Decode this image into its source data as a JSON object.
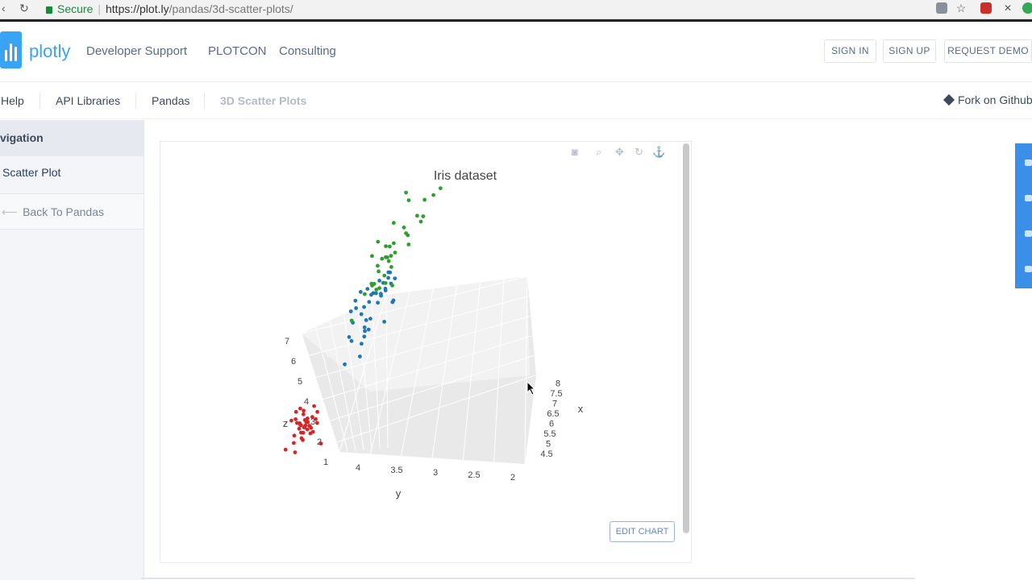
{
  "browser": {
    "secure_label": "Secure",
    "url_host": "https://plot.ly",
    "url_path": "/pandas/3d-scatter-plots/"
  },
  "header": {
    "logo_text": "plotly",
    "nav": [
      "Developer Support",
      "PLOTCON",
      "Consulting"
    ],
    "sign_in": "SIGN IN",
    "sign_up": "SIGN UP",
    "request_demo": "REQUEST DEMO"
  },
  "breadcrumb": {
    "items": [
      "Help",
      "API Libraries",
      "Pandas"
    ],
    "current": "3D Scatter Plots",
    "fork": "Fork on Github"
  },
  "sidebar": {
    "heading": "vigation",
    "item": "Scatter Plot",
    "back": "Back To Pandas"
  },
  "chart": {
    "edit_button": "EDIT CHART"
  },
  "chart_data": {
    "type": "scatter",
    "title": "Iris dataset",
    "xlabel": "x",
    "ylabel": "y",
    "zlabel": "z",
    "x_ticks": [
      "4.5",
      "5",
      "5.5",
      "6",
      "6.5",
      "7",
      "7.5",
      "8"
    ],
    "y_ticks": [
      "4",
      "3.5",
      "3",
      "2.5",
      "2"
    ],
    "z_ticks": [
      "1",
      "2",
      "3",
      "4",
      "5",
      "6",
      "7"
    ],
    "grid": true,
    "series": [
      {
        "color": "#d62728",
        "points": [
          [
            5.1,
            3.5,
            1.4
          ],
          [
            4.9,
            3.0,
            1.4
          ],
          [
            4.7,
            3.2,
            1.3
          ],
          [
            4.6,
            3.1,
            1.5
          ],
          [
            5.0,
            3.6,
            1.4
          ],
          [
            5.4,
            3.9,
            1.7
          ],
          [
            4.6,
            3.4,
            1.4
          ],
          [
            5.0,
            3.4,
            1.5
          ],
          [
            4.4,
            2.9,
            1.4
          ],
          [
            4.9,
            3.1,
            1.5
          ],
          [
            5.4,
            3.7,
            1.5
          ],
          [
            4.8,
            3.4,
            1.6
          ],
          [
            4.8,
            3.0,
            1.4
          ],
          [
            4.3,
            3.0,
            1.1
          ],
          [
            5.8,
            4.0,
            1.2
          ],
          [
            5.7,
            4.4,
            1.5
          ],
          [
            5.4,
            3.9,
            1.3
          ],
          [
            5.1,
            3.5,
            1.4
          ],
          [
            5.7,
            3.8,
            1.7
          ],
          [
            5.1,
            3.8,
            1.5
          ],
          [
            5.4,
            3.4,
            1.7
          ],
          [
            5.1,
            3.7,
            1.5
          ],
          [
            4.6,
            3.6,
            1.0
          ],
          [
            5.1,
            3.3,
            1.7
          ],
          [
            4.8,
            3.4,
            1.9
          ],
          [
            5.0,
            3.0,
            1.6
          ],
          [
            5.0,
            3.4,
            1.6
          ],
          [
            5.2,
            3.5,
            1.5
          ],
          [
            5.2,
            3.4,
            1.4
          ],
          [
            4.7,
            3.2,
            1.6
          ],
          [
            4.8,
            3.1,
            1.6
          ],
          [
            5.4,
            3.4,
            1.5
          ],
          [
            5.2,
            4.1,
            1.5
          ],
          [
            5.5,
            4.2,
            1.4
          ],
          [
            4.5,
            2.3,
            1.3
          ],
          [
            5.0,
            3.5,
            1.3
          ],
          [
            4.4,
            3.2,
            1.3
          ],
          [
            5.1,
            3.8,
            1.9
          ],
          [
            5.3,
            3.7,
            1.5
          ],
          [
            5.0,
            3.3,
            1.4
          ]
        ]
      },
      {
        "color": "#1f77b4",
        "points": [
          [
            7.0,
            3.2,
            4.7
          ],
          [
            6.4,
            3.2,
            4.5
          ],
          [
            6.9,
            3.1,
            4.9
          ],
          [
            5.5,
            2.3,
            4.0
          ],
          [
            6.5,
            2.8,
            4.6
          ],
          [
            5.7,
            2.8,
            4.5
          ],
          [
            6.3,
            3.3,
            4.7
          ],
          [
            4.9,
            2.4,
            3.3
          ],
          [
            6.6,
            2.9,
            4.6
          ],
          [
            5.2,
            2.7,
            3.9
          ],
          [
            5.0,
            2.0,
            3.5
          ],
          [
            5.9,
            3.0,
            4.2
          ],
          [
            6.0,
            2.2,
            4.0
          ],
          [
            6.1,
            2.9,
            4.7
          ],
          [
            5.6,
            2.9,
            3.6
          ],
          [
            6.7,
            3.1,
            4.4
          ],
          [
            5.6,
            3.0,
            4.5
          ],
          [
            5.8,
            2.7,
            4.1
          ],
          [
            6.2,
            2.2,
            4.5
          ],
          [
            5.6,
            2.5,
            3.9
          ],
          [
            5.9,
            3.2,
            4.8
          ],
          [
            6.1,
            2.8,
            4.0
          ],
          [
            6.3,
            2.5,
            4.9
          ],
          [
            6.1,
            2.8,
            4.7
          ],
          [
            6.4,
            2.9,
            4.3
          ],
          [
            6.6,
            3.0,
            4.4
          ],
          [
            6.8,
            2.8,
            4.8
          ],
          [
            6.7,
            3.0,
            5.0
          ],
          [
            6.0,
            2.9,
            4.5
          ],
          [
            5.7,
            2.6,
            3.5
          ],
          [
            5.5,
            2.4,
            3.8
          ],
          [
            5.8,
            2.7,
            3.9
          ],
          [
            6.0,
            2.7,
            5.1
          ],
          [
            5.4,
            3.0,
            4.5
          ],
          [
            6.0,
            3.4,
            4.5
          ],
          [
            6.7,
            3.1,
            4.7
          ],
          [
            6.3,
            2.3,
            4.4
          ],
          [
            5.6,
            3.0,
            4.1
          ]
        ]
      },
      {
        "color": "#2ca02c",
        "points": [
          [
            6.3,
            3.3,
            6.0
          ],
          [
            5.8,
            2.7,
            5.1
          ],
          [
            7.1,
            3.0,
            5.9
          ],
          [
            6.3,
            2.9,
            5.6
          ],
          [
            6.5,
            3.0,
            5.8
          ],
          [
            7.6,
            3.0,
            6.6
          ],
          [
            4.9,
            2.5,
            4.5
          ],
          [
            7.3,
            2.9,
            6.3
          ],
          [
            6.7,
            2.5,
            5.8
          ],
          [
            7.2,
            3.6,
            6.1
          ],
          [
            6.5,
            3.2,
            5.1
          ],
          [
            6.4,
            2.7,
            5.3
          ],
          [
            6.8,
            3.0,
            5.5
          ],
          [
            5.7,
            2.5,
            5.0
          ],
          [
            5.8,
            2.8,
            5.1
          ],
          [
            6.4,
            3.2,
            5.3
          ],
          [
            6.5,
            3.0,
            5.5
          ],
          [
            7.7,
            3.8,
            6.7
          ],
          [
            7.7,
            2.6,
            6.9
          ],
          [
            6.0,
            2.2,
            5.0
          ],
          [
            6.9,
            3.2,
            5.7
          ],
          [
            5.6,
            2.8,
            4.9
          ],
          [
            7.7,
            2.8,
            6.7
          ],
          [
            6.3,
            2.7,
            4.9
          ],
          [
            6.7,
            3.3,
            5.7
          ],
          [
            7.2,
            3.2,
            6.0
          ],
          [
            6.2,
            2.8,
            4.8
          ],
          [
            6.1,
            3.0,
            4.9
          ],
          [
            6.4,
            2.8,
            5.6
          ],
          [
            7.2,
            3.0,
            5.8
          ],
          [
            7.4,
            2.8,
            6.1
          ],
          [
            7.9,
            3.8,
            6.4
          ],
          [
            6.4,
            2.8,
            5.6
          ],
          [
            6.3,
            2.8,
            5.1
          ],
          [
            6.1,
            2.6,
            5.6
          ],
          [
            7.7,
            3.0,
            6.1
          ],
          [
            6.3,
            3.4,
            5.6
          ],
          [
            6.4,
            3.1,
            5.5
          ]
        ]
      }
    ]
  }
}
